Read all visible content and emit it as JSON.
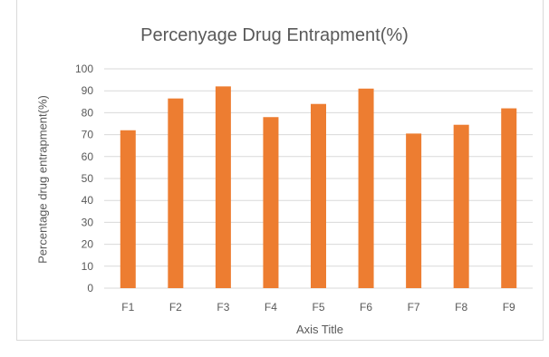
{
  "chart_data": {
    "type": "bar",
    "title": "Percenyage Drug Entrapment(%)",
    "xlabel": "Axis Title",
    "ylabel": "Percentage drug entrapment(%)",
    "categories": [
      "F1",
      "F2",
      "F3",
      "F4",
      "F5",
      "F6",
      "F7",
      "F8",
      "F9"
    ],
    "values": [
      72,
      86.5,
      92,
      78,
      84,
      91,
      70.5,
      74.5,
      82
    ],
    "ylim": [
      0,
      100
    ],
    "yticks": [
      0,
      10,
      20,
      30,
      40,
      50,
      60,
      70,
      80,
      90,
      100
    ],
    "grid": true,
    "legend": "none",
    "bar_color": "#ED7D31",
    "grid_color": "#D9D9D9"
  }
}
